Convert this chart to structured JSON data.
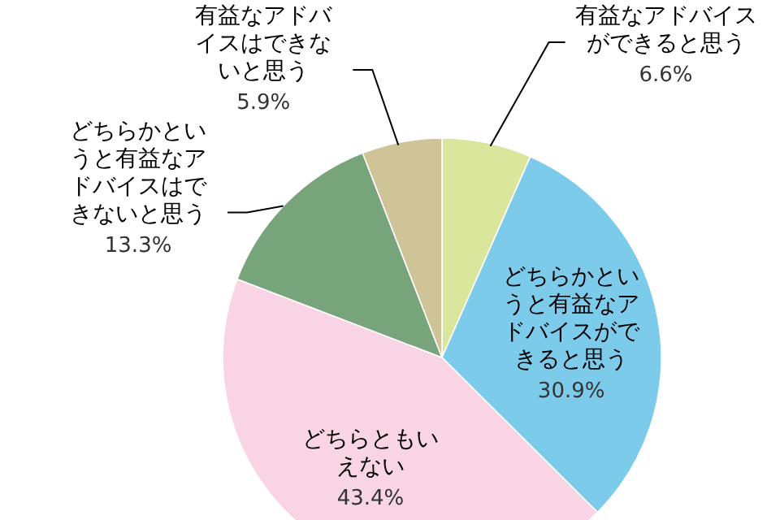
{
  "chart_data": {
    "type": "pie",
    "categories": [
      "有益なアドバイスができると思う",
      "どちらかというと有益なアドバイスができると思う",
      "どちらともいえない",
      "どちらかというと有益なアドバイスはできないと思う",
      "有益なアドバイスはできないと思う"
    ],
    "values": [
      6.6,
      30.9,
      43.4,
      13.3,
      5.9
    ],
    "value_labels": [
      "6.6%",
      "30.9%",
      "43.4%",
      "13.3%",
      "5.9%"
    ],
    "colors": [
      "#d9e69c",
      "#7ccbeb",
      "#f8d4e5",
      "#77a47a",
      "#cfc497"
    ]
  }
}
